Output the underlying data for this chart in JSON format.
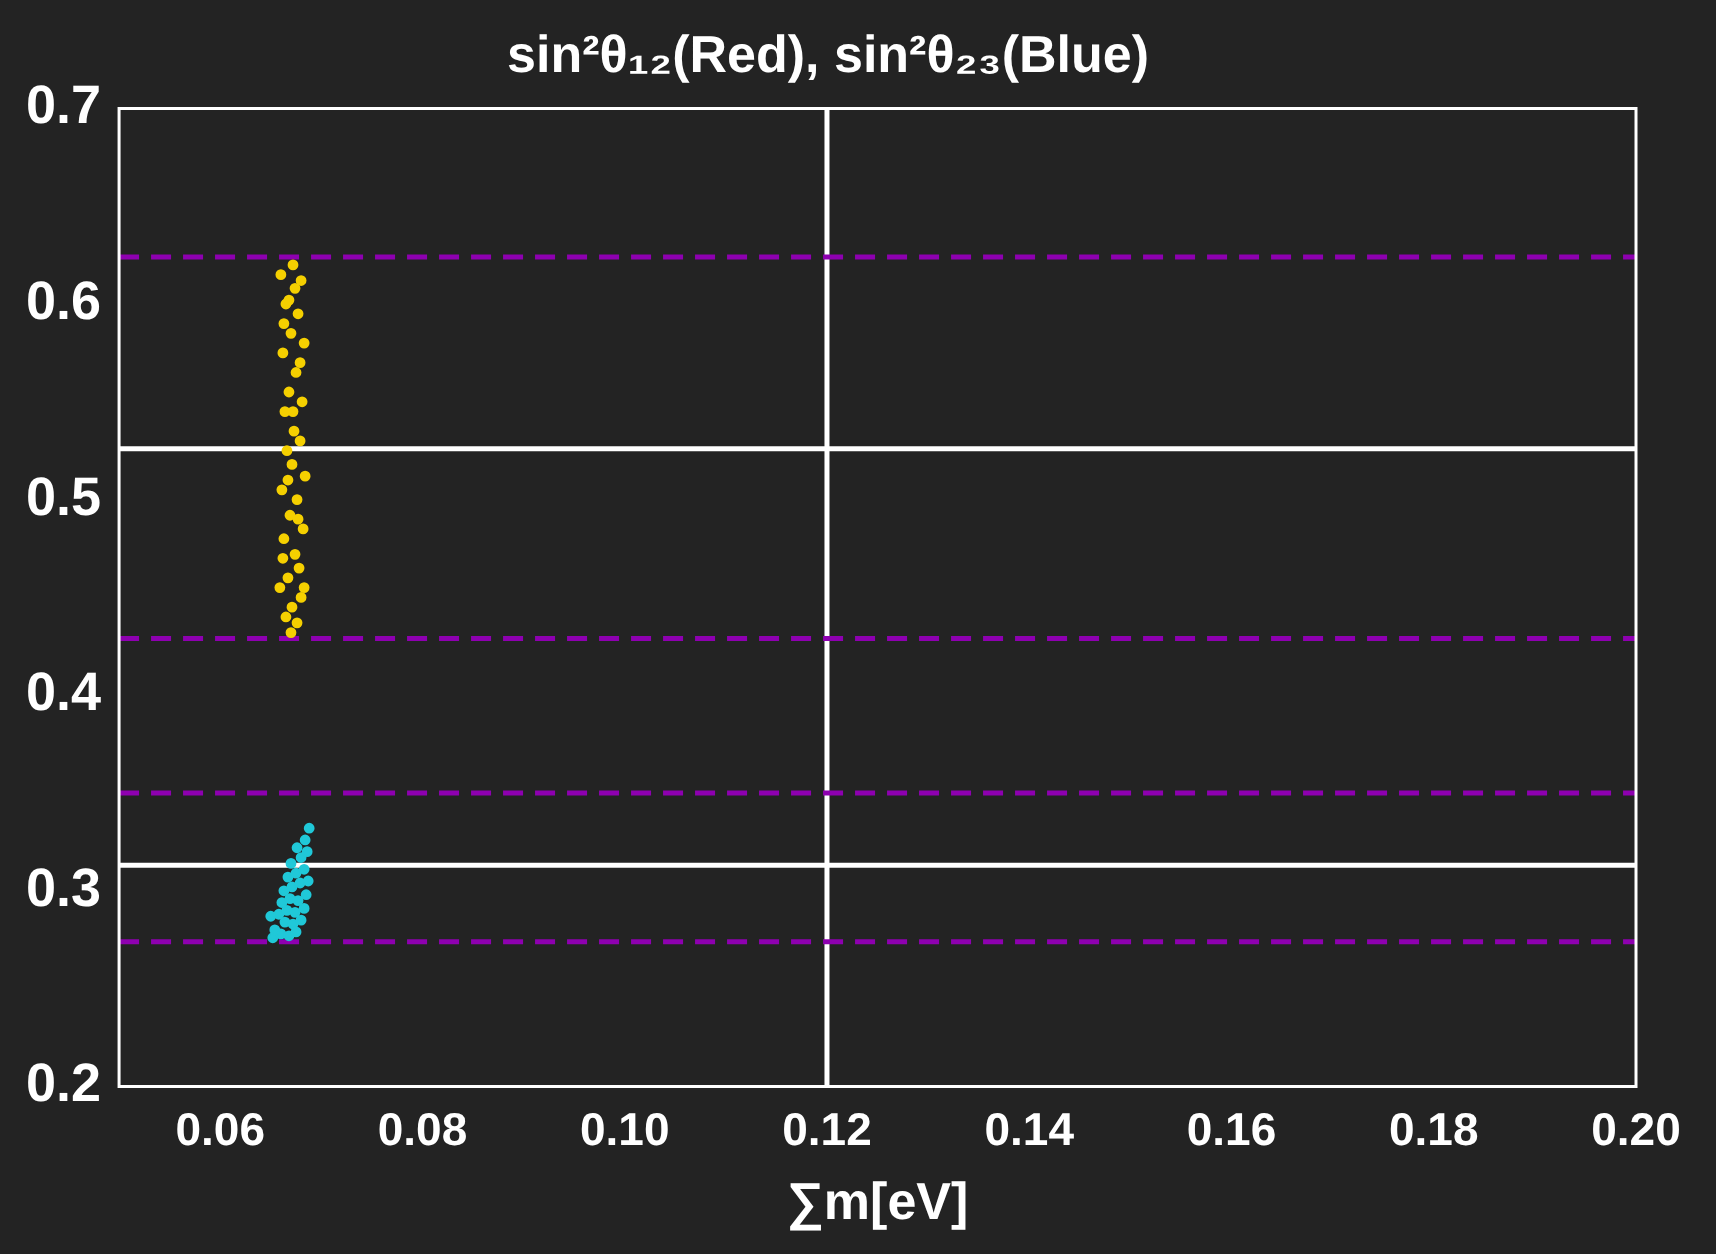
{
  "chart_data": {
    "type": "scatter",
    "title": "sin²θ₁₂(Red), sin²θ₂₃(Blue)",
    "xlabel": "∑m[eV]",
    "xlim": [
      0.05,
      0.2
    ],
    "xticks": [
      0.06,
      0.08,
      {
        "value": 0.1,
        "label": "0.10"
      },
      0.12,
      0.14,
      0.16,
      0.18,
      {
        "value": 0.2,
        "label": "0.20"
      }
    ],
    "ylim": [
      0.2,
      0.7
    ],
    "yticks": [
      0.2,
      0.3,
      0.4,
      0.5,
      0.6,
      0.7
    ],
    "grid": false,
    "legend": false,
    "marker": "circle",
    "series": [
      {
        "color": "#f5d000",
        "x": [
          0.066,
          0.0672,
          0.068,
          0.0665,
          0.0677,
          0.067,
          0.0683,
          0.0662,
          0.0675,
          0.0668,
          0.0681,
          0.0664,
          0.0673,
          0.0679,
          0.0666,
          0.0671,
          0.0684,
          0.0661,
          0.0676,
          0.0669,
          0.0682,
          0.0663,
          0.0674,
          0.0678,
          0.0667,
          0.0659,
          0.068,
          0.0671,
          0.0665,
          0.0676,
          0.067,
          0.0668,
          0.0674,
          0.0663,
          0.0679,
          0.0672,
          0.0667,
          0.0677,
          0.0662,
          0.0683
        ],
        "values": [
          0.615,
          0.62,
          0.612,
          0.6,
          0.595,
          0.585,
          0.58,
          0.575,
          0.565,
          0.555,
          0.55,
          0.545,
          0.535,
          0.53,
          0.525,
          0.518,
          0.512,
          0.505,
          0.5,
          0.492,
          0.485,
          0.48,
          0.472,
          0.465,
          0.46,
          0.455,
          0.45,
          0.445,
          0.44,
          0.437,
          0.432,
          0.602,
          0.608,
          0.59,
          0.57,
          0.545,
          0.51,
          0.49,
          0.47,
          0.455
        ]
      },
      {
        "color": "#20c8d8",
        "x": [
          0.0652,
          0.066,
          0.0668,
          0.0675,
          0.065,
          0.0664,
          0.0672,
          0.068,
          0.0658,
          0.0666,
          0.0674,
          0.0683,
          0.0661,
          0.0669,
          0.0677,
          0.0685,
          0.0663,
          0.0671,
          0.0679,
          0.0687,
          0.0667,
          0.0675,
          0.0683,
          0.067,
          0.068,
          0.0686,
          0.0676,
          0.0684,
          0.0688,
          0.0654
        ],
        "values": [
          0.276,
          0.278,
          0.277,
          0.279,
          0.287,
          0.284,
          0.283,
          0.285,
          0.288,
          0.29,
          0.289,
          0.291,
          0.294,
          0.296,
          0.295,
          0.298,
          0.3,
          0.302,
          0.304,
          0.305,
          0.307,
          0.309,
          0.311,
          0.314,
          0.317,
          0.32,
          0.322,
          0.326,
          0.332,
          0.28
        ]
      }
    ],
    "ref_lines": [
      {
        "axis": "x",
        "value": 0.12,
        "color": "#ffffff",
        "line_style": "solid"
      },
      {
        "axis": "y",
        "value": 0.526,
        "color": "#ffffff",
        "line_style": "solid"
      },
      {
        "axis": "y",
        "value": 0.313,
        "color": "#ffffff",
        "line_style": "solid"
      },
      {
        "axis": "y",
        "value": 0.624,
        "color": "#8e00b0",
        "line_style": "dashed"
      },
      {
        "axis": "y",
        "value": 0.429,
        "color": "#8e00b0",
        "line_style": "dashed"
      },
      {
        "axis": "y",
        "value": 0.35,
        "color": "#8e00b0",
        "line_style": "dashed"
      },
      {
        "axis": "y",
        "value": 0.274,
        "color": "#8e00b0",
        "line_style": "dashed"
      }
    ]
  }
}
